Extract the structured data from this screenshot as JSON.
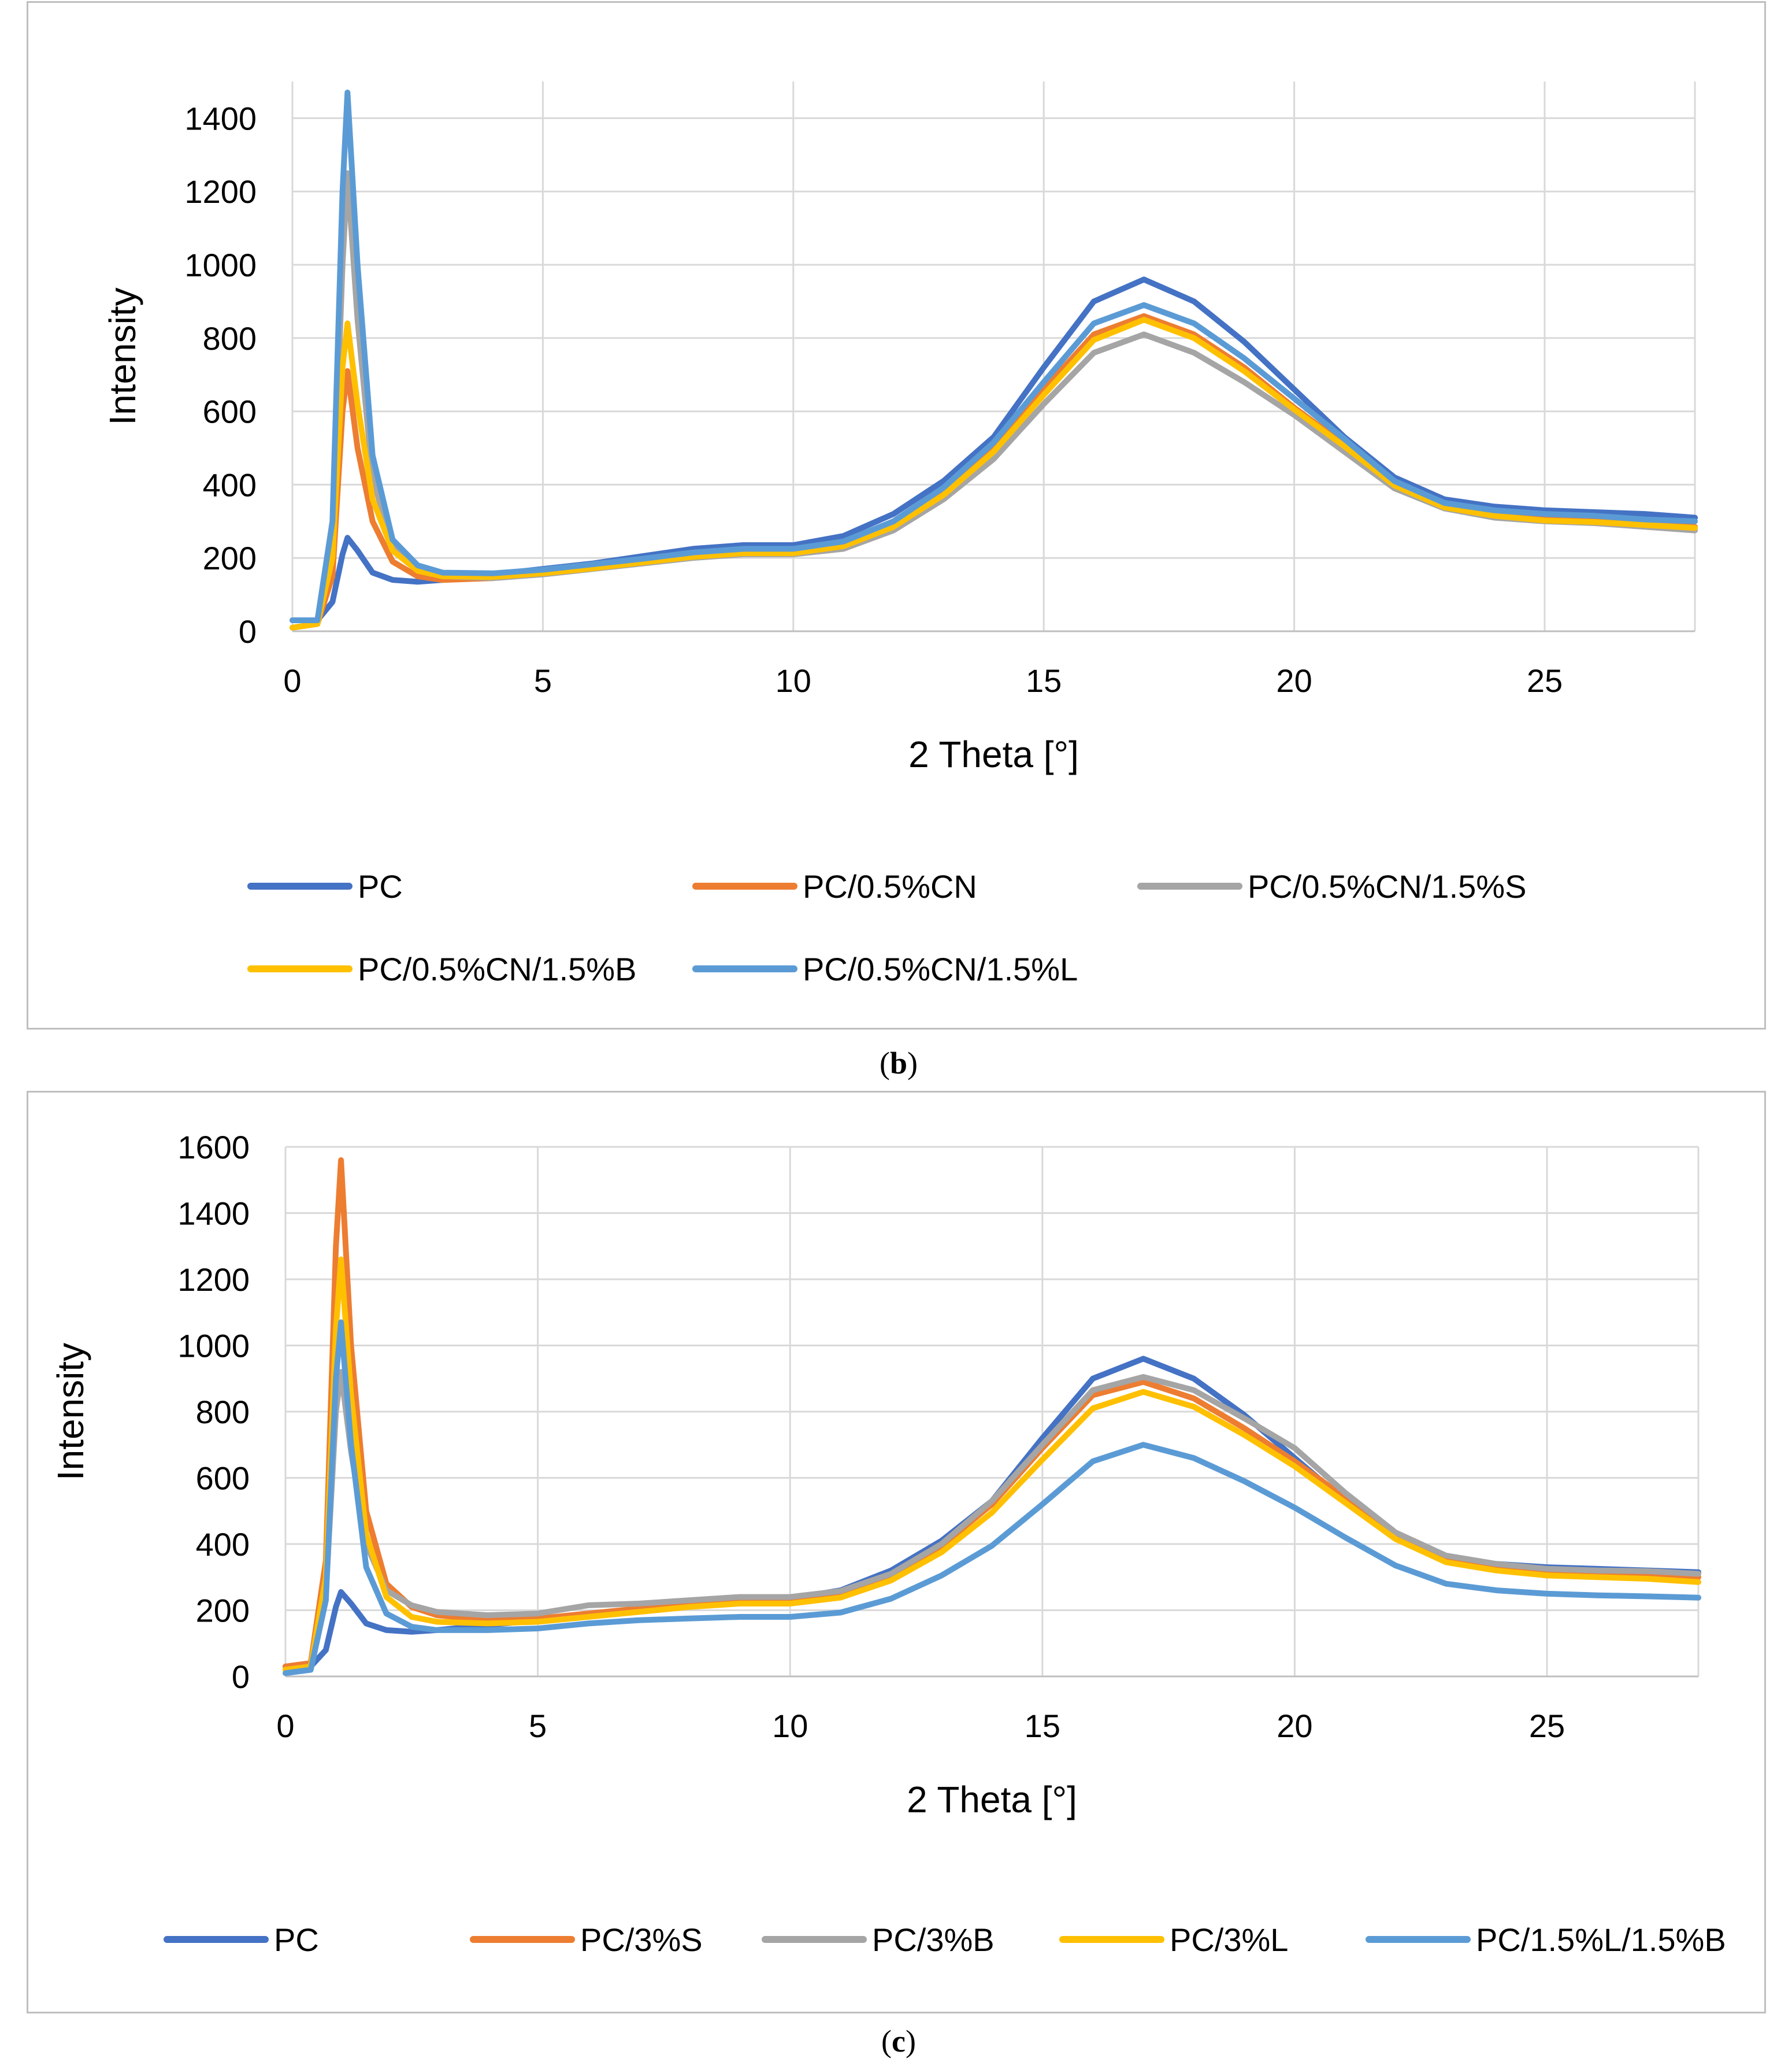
{
  "chart_data": [
    {
      "type": "line",
      "caption_letter": "b",
      "title": "",
      "xlabel": "2 Theta [°]",
      "ylabel": "Intensity",
      "xlim": [
        0,
        28
      ],
      "ylim": [
        0,
        1500
      ],
      "x_ticks": [
        0,
        5,
        10,
        15,
        20,
        25
      ],
      "y_ticks": [
        0,
        200,
        400,
        600,
        800,
        1000,
        1200,
        1400
      ],
      "grid": true,
      "legend_position": "bottom",
      "series": [
        {
          "name": "PC",
          "color": "#4472C4",
          "x": [
            0,
            0.5,
            0.8,
            1.0,
            1.1,
            1.3,
            1.6,
            2.0,
            2.5,
            3.0,
            4,
            5,
            6,
            7,
            8,
            9,
            10,
            11,
            12,
            13,
            14,
            15,
            16,
            17,
            18,
            19,
            20,
            21,
            22,
            23,
            24,
            25,
            26,
            27,
            28
          ],
          "y": [
            30,
            30,
            80,
            210,
            255,
            220,
            160,
            140,
            135,
            140,
            155,
            170,
            185,
            205,
            225,
            235,
            235,
            260,
            320,
            410,
            530,
            720,
            900,
            960,
            900,
            790,
            660,
            530,
            420,
            360,
            340,
            330,
            325,
            320,
            310
          ]
        },
        {
          "name": "PC/0.5%CN",
          "color": "#ED7D31",
          "x": [
            0,
            0.5,
            0.8,
            1.0,
            1.1,
            1.3,
            1.6,
            2.0,
            2.5,
            3.0,
            4,
            5,
            6,
            7,
            8,
            9,
            10,
            11,
            12,
            13,
            14,
            15,
            16,
            17,
            18,
            19,
            20,
            21,
            22,
            23,
            24,
            25,
            26,
            27,
            28
          ],
          "y": [
            10,
            20,
            150,
            600,
            710,
            500,
            300,
            190,
            150,
            140,
            145,
            160,
            175,
            190,
            205,
            215,
            215,
            235,
            290,
            380,
            500,
            660,
            810,
            860,
            810,
            720,
            610,
            510,
            400,
            340,
            320,
            305,
            300,
            295,
            285
          ]
        },
        {
          "name": "PC/0.5%CN/1.5%S",
          "color": "#A5A5A5",
          "x": [
            0,
            0.5,
            0.8,
            1.0,
            1.1,
            1.3,
            1.6,
            2.0,
            2.5,
            3.0,
            4,
            5,
            6,
            7,
            8,
            9,
            10,
            11,
            12,
            13,
            14,
            15,
            16,
            17,
            18,
            19,
            20,
            21,
            22,
            23,
            24,
            25,
            26,
            27,
            28
          ],
          "y": [
            10,
            20,
            250,
            1000,
            1250,
            850,
            420,
            230,
            170,
            150,
            145,
            155,
            170,
            185,
            200,
            210,
            210,
            225,
            275,
            360,
            470,
            620,
            760,
            810,
            760,
            680,
            590,
            490,
            390,
            335,
            310,
            300,
            295,
            285,
            275
          ]
        },
        {
          "name": "PC/0.5%CN/1.5%B",
          "color": "#FFC000",
          "x": [
            0,
            0.5,
            0.8,
            1.0,
            1.1,
            1.3,
            1.6,
            2.0,
            2.5,
            3.0,
            4,
            5,
            6,
            7,
            8,
            9,
            10,
            11,
            12,
            13,
            14,
            15,
            16,
            17,
            18,
            19,
            20,
            21,
            22,
            23,
            24,
            25,
            26,
            27,
            28
          ],
          "y": [
            10,
            20,
            200,
            720,
            840,
            620,
            360,
            220,
            165,
            150,
            148,
            158,
            172,
            188,
            203,
            213,
            213,
            232,
            285,
            372,
            490,
            645,
            795,
            850,
            800,
            710,
            605,
            505,
            398,
            338,
            315,
            302,
            298,
            290,
            282
          ]
        },
        {
          "name": "PC/0.5%CN/1.5%L",
          "color": "#5B9BD5",
          "x": [
            0,
            0.5,
            0.8,
            1.0,
            1.1,
            1.3,
            1.6,
            2.0,
            2.5,
            3.0,
            4,
            5,
            6,
            7,
            8,
            9,
            10,
            11,
            12,
            13,
            14,
            15,
            16,
            17,
            18,
            19,
            20,
            21,
            22,
            23,
            24,
            25,
            26,
            27,
            28
          ],
          "y": [
            30,
            30,
            300,
            1200,
            1470,
            1000,
            480,
            250,
            180,
            160,
            158,
            168,
            183,
            198,
            215,
            225,
            225,
            245,
            300,
            392,
            515,
            680,
            840,
            890,
            840,
            745,
            635,
            525,
            410,
            350,
            330,
            320,
            315,
            305,
            300
          ]
        }
      ]
    },
    {
      "type": "line",
      "caption_letter": "c",
      "title": "",
      "xlabel": "2 Theta [°]",
      "ylabel": "Intensity",
      "xlim": [
        0,
        28
      ],
      "ylim": [
        0,
        1600
      ],
      "x_ticks": [
        0,
        5,
        10,
        15,
        20,
        25
      ],
      "y_ticks": [
        0,
        200,
        400,
        600,
        800,
        1000,
        1200,
        1400,
        1600
      ],
      "grid": true,
      "legend_position": "bottom",
      "series": [
        {
          "name": "PC",
          "color": "#4472C4",
          "x": [
            0,
            0.5,
            0.8,
            1.0,
            1.1,
            1.3,
            1.6,
            2.0,
            2.5,
            3.0,
            4,
            5,
            6,
            7,
            8,
            9,
            10,
            11,
            12,
            13,
            14,
            15,
            16,
            17,
            18,
            19,
            20,
            21,
            22,
            23,
            24,
            25,
            26,
            27,
            28
          ],
          "y": [
            30,
            30,
            80,
            210,
            255,
            220,
            160,
            140,
            135,
            140,
            155,
            170,
            185,
            205,
            225,
            235,
            235,
            260,
            320,
            410,
            530,
            720,
            900,
            960,
            900,
            790,
            660,
            530,
            420,
            360,
            340,
            330,
            325,
            320,
            315
          ]
        },
        {
          "name": "PC/3%S",
          "color": "#ED7D31",
          "x": [
            0,
            0.5,
            0.8,
            1.0,
            1.1,
            1.3,
            1.6,
            2.0,
            2.5,
            3.0,
            4,
            5,
            6,
            7,
            8,
            9,
            10,
            11,
            12,
            13,
            14,
            15,
            16,
            17,
            18,
            19,
            20,
            21,
            22,
            23,
            24,
            25,
            26,
            27,
            28
          ],
          "y": [
            30,
            40,
            350,
            1300,
            1560,
            1000,
            500,
            280,
            210,
            185,
            170,
            175,
            190,
            205,
            220,
            230,
            230,
            250,
            305,
            395,
            520,
            690,
            850,
            890,
            840,
            750,
            650,
            540,
            430,
            360,
            335,
            320,
            315,
            310,
            300
          ]
        },
        {
          "name": "PC/3%B",
          "color": "#A5A5A5",
          "x": [
            0,
            0.5,
            0.8,
            1.0,
            1.1,
            1.3,
            1.6,
            2.0,
            2.5,
            3.0,
            4,
            5,
            6,
            7,
            8,
            9,
            10,
            11,
            12,
            13,
            14,
            15,
            16,
            17,
            18,
            19,
            20,
            21,
            22,
            23,
            24,
            25,
            26,
            27,
            28
          ],
          "y": [
            20,
            30,
            250,
            800,
            920,
            680,
            400,
            260,
            215,
            195,
            185,
            190,
            215,
            220,
            230,
            240,
            240,
            258,
            310,
            400,
            530,
            700,
            865,
            905,
            865,
            780,
            690,
            555,
            435,
            365,
            340,
            325,
            320,
            318,
            310
          ]
        },
        {
          "name": "PC/3%L",
          "color": "#FFC000",
          "x": [
            0,
            0.5,
            0.8,
            1.0,
            1.1,
            1.3,
            1.6,
            2.0,
            2.5,
            3.0,
            4,
            5,
            6,
            7,
            8,
            9,
            10,
            11,
            12,
            13,
            14,
            15,
            16,
            17,
            18,
            19,
            20,
            21,
            22,
            23,
            24,
            25,
            26,
            27,
            28
          ],
          "y": [
            20,
            30,
            300,
            1050,
            1260,
            850,
            430,
            240,
            180,
            165,
            160,
            165,
            180,
            195,
            210,
            220,
            220,
            238,
            290,
            375,
            495,
            655,
            810,
            860,
            815,
            730,
            635,
            525,
            415,
            345,
            320,
            305,
            300,
            295,
            285
          ]
        },
        {
          "name": "PC/1.5%L/1.5%B",
          "color": "#5B9BD5",
          "x": [
            0,
            0.5,
            0.8,
            1.0,
            1.1,
            1.3,
            1.6,
            2.0,
            2.5,
            3.0,
            4,
            5,
            6,
            7,
            8,
            9,
            10,
            11,
            12,
            13,
            14,
            15,
            16,
            17,
            18,
            19,
            20,
            21,
            22,
            23,
            24,
            25,
            26,
            27,
            28
          ],
          "y": [
            10,
            20,
            230,
            900,
            1070,
            700,
            330,
            190,
            150,
            140,
            140,
            145,
            160,
            170,
            175,
            180,
            180,
            193,
            235,
            305,
            395,
            520,
            650,
            700,
            660,
            590,
            510,
            420,
            335,
            280,
            260,
            250,
            245,
            242,
            238
          ]
        }
      ]
    }
  ]
}
